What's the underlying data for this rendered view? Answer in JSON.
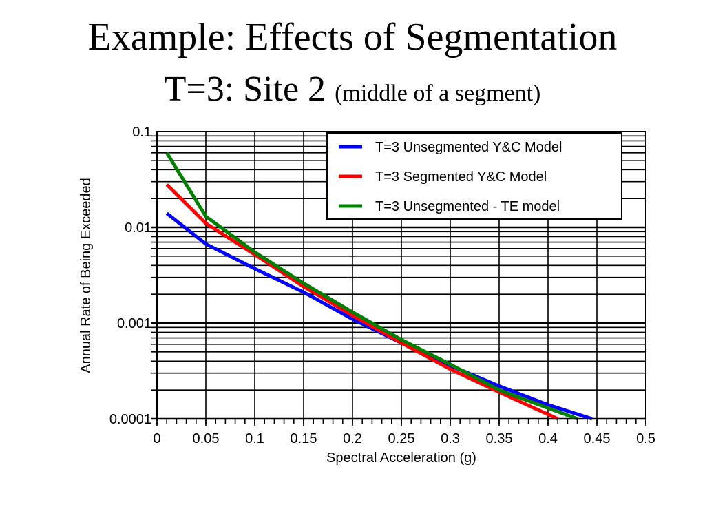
{
  "slide": {
    "title_line1": "Example: Effects of Segmentation",
    "title_line2": "T=3: Site 2",
    "title_line2_sub": "(middle of a segment)"
  },
  "chart_data": {
    "type": "line",
    "xlabel": "Spectral Acceleration (g)",
    "ylabel": "Annual Rate of Being Exceeded",
    "xlim": [
      0,
      0.5
    ],
    "ylim": [
      0.0001,
      0.1
    ],
    "yscale": "log",
    "grid": true,
    "legend_position": "top-right",
    "xticks": [
      "0",
      "0.05",
      "0.1",
      "0.15",
      "0.2",
      "0.25",
      "0.3",
      "0.35",
      "0.4",
      "0.45",
      "0.5"
    ],
    "yticks": [
      "0.1",
      "0.01",
      "0.001",
      "0.0001"
    ],
    "series": [
      {
        "name": "T=3 Unsegmented Y&C Model",
        "color": "#0000ff",
        "x": [
          0.01,
          0.05,
          0.1,
          0.15,
          0.2,
          0.25,
          0.3,
          0.35,
          0.4,
          0.445
        ],
        "y": [
          0.014,
          0.0067,
          0.0037,
          0.0021,
          0.0011,
          0.00062,
          0.00036,
          0.00022,
          0.00014,
          0.0001
        ]
      },
      {
        "name": "T=3 Segmented Y&C Model",
        "color": "#ff0000",
        "x": [
          0.01,
          0.05,
          0.1,
          0.15,
          0.2,
          0.25,
          0.3,
          0.35,
          0.41
        ],
        "y": [
          0.028,
          0.011,
          0.0052,
          0.0024,
          0.0012,
          0.00062,
          0.00033,
          0.00019,
          0.0001
        ]
      },
      {
        "name": "T=3 Unsegmented - TE model",
        "color": "#008000",
        "x": [
          0.01,
          0.05,
          0.1,
          0.15,
          0.2,
          0.25,
          0.3,
          0.35,
          0.43
        ],
        "y": [
          0.06,
          0.013,
          0.0055,
          0.0026,
          0.0013,
          0.00067,
          0.00037,
          0.0002,
          0.0001
        ]
      }
    ]
  }
}
